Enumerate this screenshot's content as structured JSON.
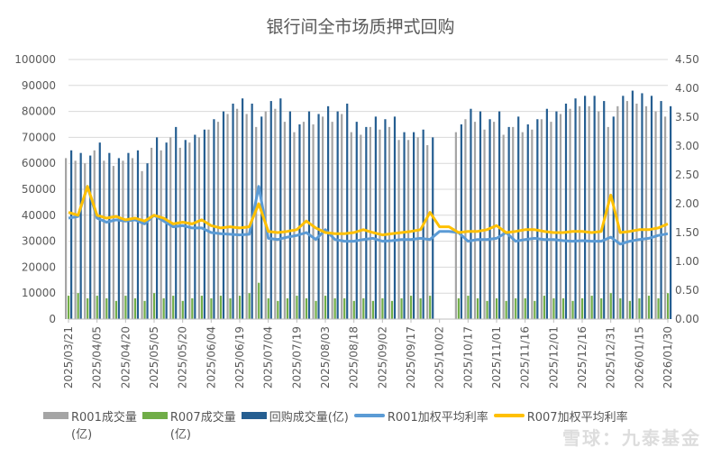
{
  "chart_data": {
    "type": "bar+line",
    "title": "银行间全市场质押式回购",
    "ylim_left": [
      0,
      100000
    ],
    "ylim_right": [
      0,
      4.5
    ],
    "yticks_left": [
      "0",
      "10000",
      "20000",
      "30000",
      "40000",
      "50000",
      "60000",
      "70000",
      "80000",
      "90000",
      "100000"
    ],
    "yticks_right": [
      "0.00",
      "0.50",
      "1.00",
      "1.50",
      "2.00",
      "2.50",
      "3.00",
      "3.50",
      "4.00",
      "4.50"
    ],
    "xtick_labels": [
      "2025/03/21",
      "2025/04/05",
      "2025/04/20",
      "2025/05/05",
      "2025/05/20",
      "2025/06/04",
      "2025/06/19",
      "2025/07/04",
      "2025/07/19",
      "2025/08/03",
      "2025/08/18",
      "2025/09/02",
      "2025/09/17",
      "2025/10/02",
      "2025/10/17",
      "2025/11/01",
      "2025/11/16",
      "2025/12/01",
      "2025/12/16",
      "2025/12/31",
      "2026/01/15",
      "2026/01/30"
    ],
    "grid": true,
    "legend_position": "bottom",
    "x": [
      "2025/03/21",
      "2025/03/26",
      "2025/03/31",
      "2025/04/05",
      "2025/04/10",
      "2025/04/15",
      "2025/04/20",
      "2025/04/25",
      "2025/04/30",
      "2025/05/05",
      "2025/05/10",
      "2025/05/15",
      "2025/05/20",
      "2025/05/25",
      "2025/05/30",
      "2025/06/04",
      "2025/06/09",
      "2025/06/14",
      "2025/06/19",
      "2025/06/24",
      "2025/06/29",
      "2025/07/04",
      "2025/07/09",
      "2025/07/14",
      "2025/07/19",
      "2025/07/24",
      "2025/07/29",
      "2025/08/03",
      "2025/08/08",
      "2025/08/13",
      "2025/08/18",
      "2025/08/23",
      "2025/08/28",
      "2025/09/02",
      "2025/09/07",
      "2025/09/12",
      "2025/09/17",
      "2025/09/22",
      "2025/09/27",
      "2025/10/02",
      "2025/10/07",
      "2025/10/12",
      "2025/10/17",
      "2025/10/22",
      "2025/10/27",
      "2025/11/01",
      "2025/11/06",
      "2025/11/11",
      "2025/11/16",
      "2025/11/21",
      "2025/11/26",
      "2025/12/01",
      "2025/12/06",
      "2025/12/11",
      "2025/12/16",
      "2025/12/21",
      "2025/12/26",
      "2025/12/31",
      "2026/01/05",
      "2026/01/10",
      "2026/01/15",
      "2026/01/20",
      "2026/01/25",
      "2026/01/30"
    ],
    "series": [
      {
        "name": "R001成交量(亿)",
        "kind": "bar",
        "axis": "left",
        "color": "#a5a5a5",
        "values": [
          62000,
          61000,
          60000,
          65000,
          61000,
          59000,
          61000,
          62000,
          57000,
          66000,
          65000,
          70000,
          66000,
          68000,
          70000,
          73000,
          76000,
          79000,
          81000,
          79000,
          74000,
          80000,
          81000,
          76000,
          72000,
          76000,
          75000,
          78000,
          76000,
          79000,
          72000,
          71000,
          74000,
          73000,
          74000,
          69000,
          69000,
          70000,
          67000,
          null,
          null,
          72000,
          77000,
          76000,
          73000,
          76000,
          71000,
          74000,
          72000,
          73000,
          77000,
          76000,
          79000,
          81000,
          82000,
          82000,
          80000,
          74000,
          82000,
          84000,
          83000,
          82000,
          80000,
          78000
        ]
      },
      {
        "name": "R007成交量(亿)",
        "kind": "bar",
        "axis": "left",
        "color": "#70ad47",
        "values": [
          9000,
          10000,
          8000,
          9000,
          8000,
          7000,
          9000,
          8000,
          7000,
          10000,
          8000,
          9000,
          7000,
          8000,
          9000,
          8000,
          9000,
          8000,
          9000,
          10000,
          14000,
          8000,
          7000,
          8000,
          9000,
          8000,
          7000,
          9000,
          8000,
          8000,
          7000,
          8000,
          7000,
          8000,
          7000,
          8000,
          9000,
          8000,
          9000,
          null,
          null,
          8000,
          9000,
          8000,
          7000,
          8000,
          7000,
          8000,
          8000,
          7000,
          9000,
          8000,
          8000,
          7000,
          8000,
          9000,
          8000,
          10000,
          8000,
          7000,
          8000,
          9000,
          8000,
          10000
        ]
      },
      {
        "name": "回购成交量(亿)",
        "kind": "bar",
        "axis": "left",
        "color": "#255e91",
        "values": [
          65000,
          64000,
          63000,
          68000,
          64000,
          62000,
          64000,
          65000,
          60000,
          70000,
          68000,
          74000,
          69000,
          71000,
          73000,
          77000,
          80000,
          83000,
          85000,
          83000,
          78000,
          84000,
          85000,
          80000,
          75000,
          80000,
          79000,
          82000,
          80000,
          83000,
          76000,
          74000,
          78000,
          77000,
          78000,
          72000,
          72000,
          73000,
          70000,
          null,
          null,
          75000,
          81000,
          80000,
          77000,
          80000,
          74000,
          78000,
          75000,
          77000,
          81000,
          80000,
          83000,
          85000,
          86000,
          86000,
          84000,
          78000,
          86000,
          88000,
          87000,
          86000,
          84000,
          82000
        ]
      },
      {
        "name": "R001加权平均利率",
        "kind": "line",
        "axis": "right",
        "color": "#5b9bd5",
        "values": [
          1.75,
          1.78,
          2.3,
          1.75,
          1.68,
          1.72,
          1.7,
          1.72,
          1.65,
          1.8,
          1.7,
          1.6,
          1.62,
          1.58,
          1.58,
          1.5,
          1.48,
          1.47,
          1.46,
          1.47,
          2.3,
          1.4,
          1.38,
          1.42,
          1.45,
          1.5,
          1.38,
          1.55,
          1.38,
          1.35,
          1.35,
          1.38,
          1.4,
          1.35,
          1.36,
          1.38,
          1.38,
          1.4,
          1.38,
          1.52,
          1.52,
          1.5,
          1.35,
          1.38,
          1.38,
          1.4,
          1.5,
          1.35,
          1.38,
          1.4,
          1.38,
          1.38,
          1.36,
          1.35,
          1.36,
          1.35,
          1.35,
          1.42,
          1.3,
          1.35,
          1.38,
          1.4,
          1.45,
          1.48
        ]
      },
      {
        "name": "R007加权平均利率",
        "kind": "line",
        "axis": "right",
        "color": "#ffc000",
        "values": [
          1.85,
          1.8,
          2.3,
          1.8,
          1.75,
          1.78,
          1.72,
          1.75,
          1.7,
          1.8,
          1.75,
          1.65,
          1.68,
          1.65,
          1.72,
          1.62,
          1.58,
          1.6,
          1.58,
          1.6,
          2.0,
          1.52,
          1.5,
          1.52,
          1.55,
          1.7,
          1.58,
          1.5,
          1.48,
          1.48,
          1.5,
          1.55,
          1.5,
          1.46,
          1.48,
          1.5,
          1.52,
          1.55,
          1.85,
          1.6,
          1.6,
          1.5,
          1.52,
          1.52,
          1.55,
          1.62,
          1.5,
          1.52,
          1.55,
          1.55,
          1.52,
          1.5,
          1.5,
          1.52,
          1.52,
          1.5,
          1.52,
          2.15,
          1.5,
          1.52,
          1.55,
          1.55,
          1.58,
          1.65
        ]
      }
    ]
  },
  "legend": {
    "r001_vol": "R001成交量",
    "r001_vol_unit": "(亿)",
    "r007_vol": "R007成交量",
    "r007_vol_unit": "(亿)",
    "repo_vol": "回购成交量(亿)",
    "r001_rate": "R001加权平均利率",
    "r007_rate": "R007加权平均利率"
  },
  "watermark": "雪球：九泰基金"
}
